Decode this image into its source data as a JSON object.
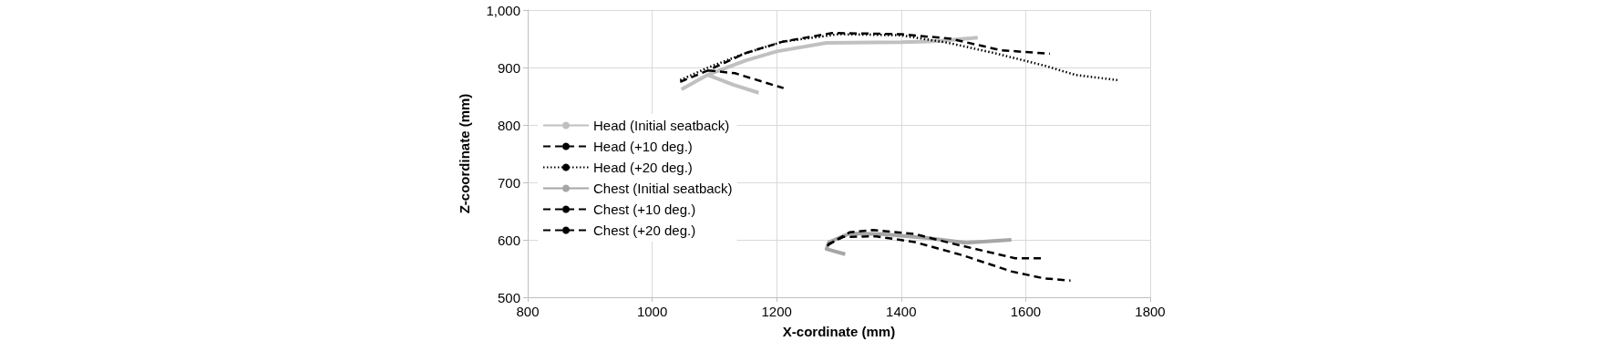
{
  "chart_data": {
    "type": "line",
    "xlabel": "X-cordinate (mm)",
    "ylabel": "Z-coordinate (mm)",
    "xlim": [
      800,
      1800
    ],
    "xticks": [
      800,
      1000,
      1200,
      1400,
      1600,
      1800
    ],
    "ylim": [
      500,
      1000
    ],
    "yticks": [
      500,
      600,
      700,
      800,
      900,
      {
        "value": 1000,
        "label": "1,000"
      }
    ],
    "grid": true,
    "legend": "left",
    "marker": "none",
    "series": [
      {
        "name": "Head (Initial seatback)",
        "color": "#c0c0c0",
        "line_style": "solid",
        "x": [
          1047,
          1089,
          1150,
          1200,
          1280,
          1400,
          1460,
          1523,
          null,
          1089,
          1130,
          1171
        ],
        "values": [
          862,
          887,
          912,
          928,
          943,
          944,
          946,
          952,
          null,
          887,
          870,
          856
        ]
      },
      {
        "name": "Head (+10 deg.)",
        "color": "#000000",
        "line_style": "dashed",
        "x": [
          1045,
          1090,
          1150,
          1210,
          1289,
          1400,
          1480,
          1560,
          1639,
          null,
          1090,
          1133,
          1211
        ],
        "values": [
          875,
          895,
          925,
          945,
          960,
          958,
          950,
          930,
          924,
          null,
          895,
          890,
          864
        ]
      },
      {
        "name": "Head (+20 deg.)",
        "color": "#000000",
        "line_style": "dotted",
        "x": [
          1045,
          1090,
          1150,
          1210,
          1300,
          1400,
          1475,
          1550,
          1631,
          1680,
          1748
        ],
        "values": [
          878,
          900,
          925,
          945,
          958,
          956,
          943,
          925,
          903,
          887,
          878
        ]
      },
      {
        "name": "Chest (Initial seatback)",
        "color": "#a6a6a6",
        "line_style": "solid",
        "x": [
          1577,
          1504,
          1442,
          1370,
          1317,
          1284,
          1280,
          1310
        ],
        "values": [
          600,
          595,
          603,
          610,
          611,
          596,
          584,
          575
        ]
      },
      {
        "name": "Chest (+10 deg.)",
        "color": "#000000",
        "line_style": "dashed",
        "x": [
          1281,
          1317,
          1354,
          1422,
          1484,
          1551,
          1583,
          1626
        ],
        "values": [
          590,
          613,
          617,
          610,
          593,
          576,
          568,
          568
        ]
      },
      {
        "name": "Chest (+20 deg.)",
        "color": "#000000",
        "line_style": "dashed",
        "x": [
          1282,
          1307,
          1360,
          1422,
          1499,
          1577,
          1629,
          1672
        ],
        "values": [
          592,
          605,
          606,
          596,
          573,
          545,
          533,
          529
        ]
      }
    ]
  }
}
